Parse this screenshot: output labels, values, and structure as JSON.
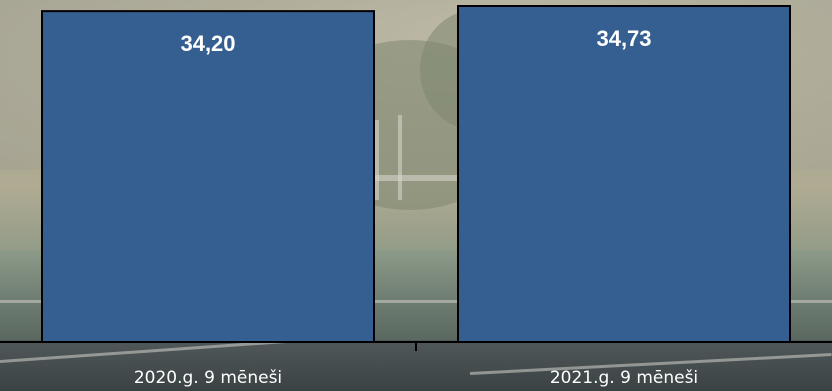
{
  "chart_data": {
    "type": "bar",
    "categories": [
      "2020.g. 9 mēneši",
      "2021.g. 9 mēneši"
    ],
    "values": [
      34.2,
      34.73
    ],
    "value_labels": [
      "34,20",
      "34,73"
    ],
    "colors": {
      "bar": "#365f91"
    },
    "grid": false,
    "legend": "none"
  }
}
